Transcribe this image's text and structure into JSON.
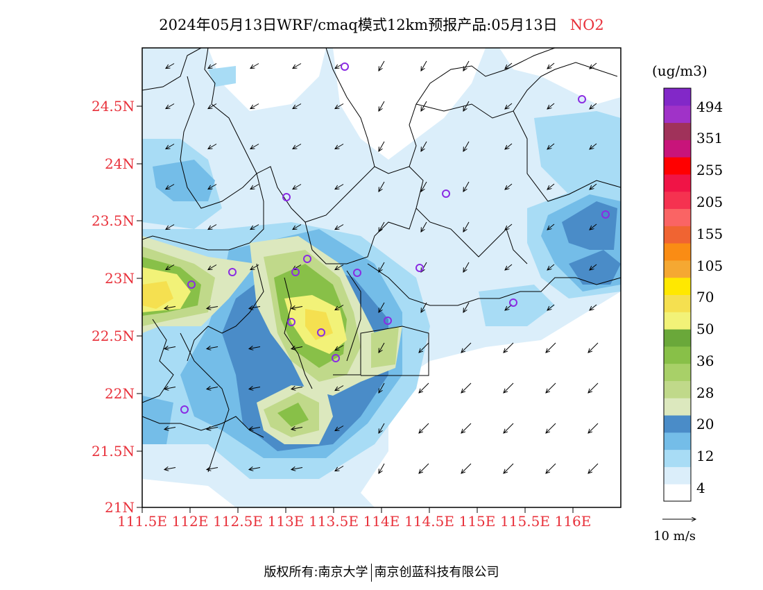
{
  "title": {
    "text": "2024年05月13日WRF/cmaq模式12km预报产品:05月13日",
    "pollutant": "NO2"
  },
  "axes": {
    "lat_labels": [
      "24.5N",
      "24N",
      "23.5N",
      "23N",
      "22.5N",
      "22N",
      "21.5N",
      "21N"
    ],
    "lon_labels": [
      "111.5E",
      "112E",
      "112.5E",
      "113E",
      "113.5E",
      "114E",
      "114.5E",
      "115E",
      "115.5E",
      "116E"
    ]
  },
  "colorbar": {
    "unit": "(ug/m3)",
    "colors": [
      "#ffffff",
      "#dbeefa",
      "#a8dcf5",
      "#74bde8",
      "#4a8cc8",
      "#dce8be",
      "#c0d98a",
      "#a8d068",
      "#88c048",
      "#6aa83a",
      "#f2f278",
      "#f5e050",
      "#ffe800",
      "#f5a832",
      "#fa8c14",
      "#f06432",
      "#fa6464",
      "#f53250",
      "#f01446",
      "#ff0000",
      "#c8147a",
      "#a0325a",
      "#a032c8",
      "#8228c8"
    ],
    "labels": [
      "494",
      "351",
      "255",
      "205",
      "155",
      "105",
      "70",
      "50",
      "36",
      "28",
      "20",
      "12",
      "4"
    ]
  },
  "wind_legend": {
    "text": "10  m/s"
  },
  "stations": [
    "s1",
    "s2",
    "s3",
    "s4",
    "s5",
    "s6",
    "s7",
    "s8",
    "s9",
    "s10",
    "s11",
    "s12",
    "s13",
    "s14",
    "s15",
    "s16",
    "s17"
  ],
  "footer": {
    "left": "版权所有:南京大学",
    "right": "南京创蓝科技有限公司"
  }
}
